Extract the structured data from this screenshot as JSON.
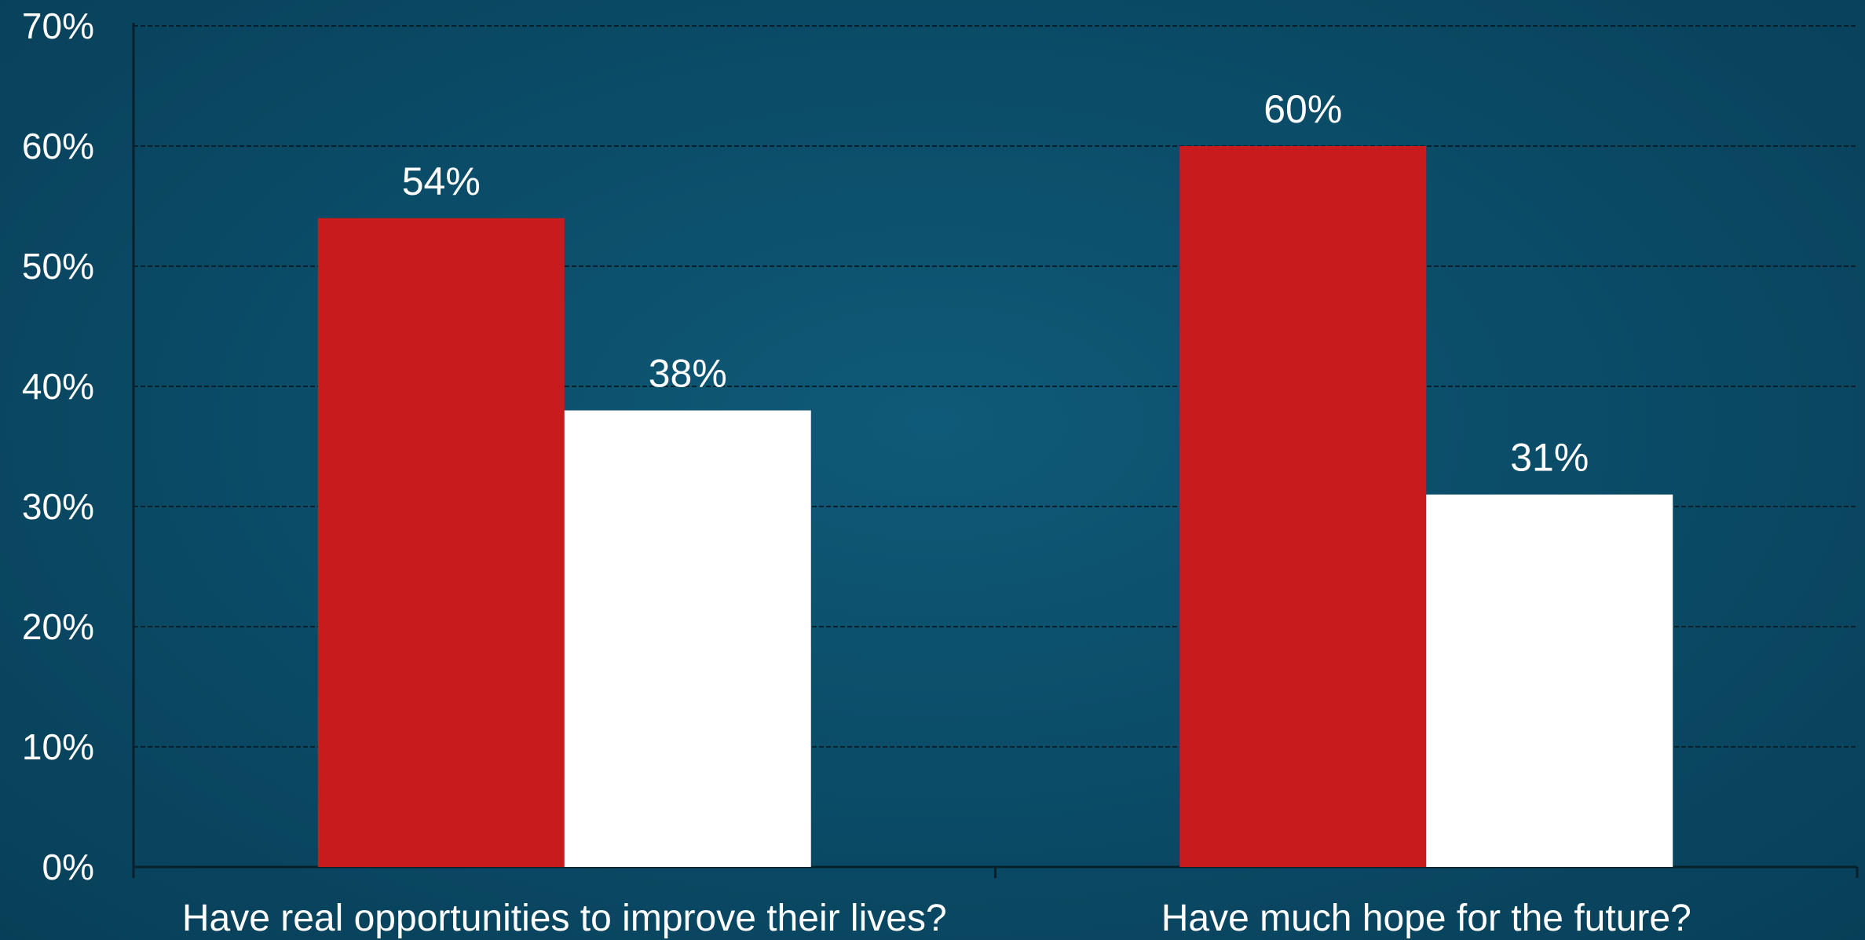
{
  "chart_data": {
    "type": "bar",
    "title": "",
    "xlabel": "",
    "ylabel": "",
    "categories": [
      "Have real opportunities to improve their lives?",
      "Have much hope for the future?"
    ],
    "series": [
      {
        "color": "#c81b1e",
        "values": [
          54,
          60
        ]
      },
      {
        "color": "#ffffff",
        "values": [
          38,
          31
        ]
      }
    ],
    "data_labels": [
      [
        "54%",
        "60%"
      ],
      [
        "38%",
        "31%"
      ]
    ],
    "ylim": [
      0,
      70
    ],
    "y_ticks": [
      {
        "value": 0,
        "label": "0%"
      },
      {
        "value": 10,
        "label": "10%"
      },
      {
        "value": 20,
        "label": "20%"
      },
      {
        "value": 30,
        "label": "30%"
      },
      {
        "value": 40,
        "label": "40%"
      },
      {
        "value": 50,
        "label": "50%"
      },
      {
        "value": 60,
        "label": "60%"
      },
      {
        "value": 70,
        "label": "70%"
      }
    ],
    "grid": true,
    "legend": "none"
  }
}
